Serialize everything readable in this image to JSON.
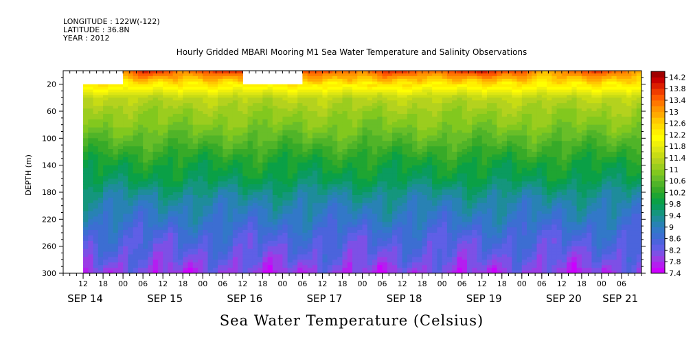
{
  "header": {
    "longitude": "LONGITUDE : 122W(-122)",
    "latitude": "LATITUDE : 36.8N",
    "year": "YEAR : 2012"
  },
  "chart_data": {
    "type": "heatmap",
    "title": "Hourly Gridded MBARI Mooring M1 Sea Water Temperature and Salinity Observations",
    "xlabel": "",
    "ylabel": "DEPTH (m)",
    "bottom_title": "Sea Water Temperature (Celsius)",
    "y_range": [
      0,
      300
    ],
    "y_inverted": true,
    "y_ticks": [
      20,
      60,
      100,
      140,
      180,
      220,
      260,
      300
    ],
    "x_range_hours": [
      0,
      174
    ],
    "x_hour_ticks": [
      "12",
      "18",
      "00",
      "06",
      "12",
      "18",
      "00",
      "06",
      "12",
      "18",
      "00",
      "06",
      "12",
      "18",
      "00",
      "06",
      "12",
      "18",
      "00",
      "06",
      "12",
      "18",
      "00",
      "06",
      "12",
      "18",
      "00",
      "06"
    ],
    "x_hour_tick_hours": [
      6,
      12,
      18,
      24,
      30,
      36,
      42,
      48,
      54,
      60,
      66,
      72,
      78,
      84,
      90,
      96,
      102,
      108,
      114,
      120,
      126,
      132,
      138,
      144,
      150,
      156,
      162,
      168
    ],
    "x_dates": [
      {
        "label": "SEP 14",
        "hour": 6
      },
      {
        "label": "SEP 15",
        "hour": 30
      },
      {
        "label": "SEP 16",
        "hour": 54
      },
      {
        "label": "SEP 17",
        "hour": 78
      },
      {
        "label": "SEP 18",
        "hour": 102
      },
      {
        "label": "SEP 19",
        "hour": 126
      },
      {
        "label": "SEP 20",
        "hour": 150
      },
      {
        "label": "SEP 21",
        "hour": 167
      }
    ],
    "colorbar": {
      "levels": [
        7.4,
        7.6,
        7.8,
        8.0,
        8.2,
        8.4,
        8.6,
        8.8,
        9.0,
        9.2,
        9.4,
        9.6,
        9.8,
        10.0,
        10.2,
        10.4,
        10.6,
        10.8,
        11.0,
        11.2,
        11.4,
        11.6,
        11.8,
        12.0,
        12.2,
        12.4,
        12.6,
        12.8,
        13.0,
        13.2,
        13.4,
        13.6,
        13.8,
        14.0,
        14.2,
        14.4
      ],
      "labels": [
        "7.4",
        "7.8",
        "8.2",
        "8.6",
        "9",
        "9.4",
        "9.8",
        "10.2",
        "10.6",
        "11",
        "11.4",
        "11.8",
        "12.2",
        "12.6",
        "13",
        "13.4",
        "13.8",
        "14.2"
      ],
      "colors": [
        "#cc00ff",
        "#b41ef0",
        "#9b3ce6",
        "#7d50e6",
        "#5f5fe6",
        "#4b64dc",
        "#3c6ed2",
        "#3278c8",
        "#2882b4",
        "#1e8c9b",
        "#14967d",
        "#0a9b5f",
        "#0aa046",
        "#1ea532",
        "#37aa28",
        "#50b428",
        "#69be28",
        "#82c81e",
        "#9bcd1e",
        "#b4d21e",
        "#c8dc14",
        "#dce614",
        "#f0f00a",
        "#ffff00",
        "#fff000",
        "#ffdc00",
        "#ffc800",
        "#ffaa00",
        "#ff9600",
        "#ff7800",
        "#ff5a00",
        "#f03c00",
        "#dc1e00",
        "#c80000",
        "#a00000"
      ],
      "units": "Celsius"
    },
    "series": [
      {
        "name": "surface_temperature_by_hour",
        "x_hours": [
          0,
          12,
          18,
          24,
          30,
          36,
          42,
          48,
          54,
          60,
          66,
          72,
          78,
          84,
          90,
          96,
          102,
          108,
          114,
          120,
          126,
          132,
          138,
          144,
          150,
          156,
          162,
          168,
          174
        ],
        "values": [
          null,
          null,
          13.2,
          14.0,
          13.8,
          13.2,
          13.6,
          13.8,
          null,
          null,
          null,
          null,
          13.6,
          13.5,
          13.2,
          13.8,
          13.9,
          13.3,
          13.4,
          13.8,
          14.0,
          13.7,
          13.6,
          12.8,
          13.2,
          13.6,
          13.8,
          13.4,
          12.8
        ]
      }
    ],
    "depth_profile_reference": {
      "depths": [
        20,
        40,
        60,
        80,
        100,
        120,
        140,
        160,
        180,
        200,
        220,
        240,
        260,
        280,
        300
      ],
      "values": [
        12.4,
        11.4,
        11.1,
        10.9,
        10.6,
        10.3,
        10.0,
        9.8,
        9.4,
        9.1,
        8.9,
        8.6,
        8.4,
        8.2,
        7.9
      ]
    },
    "data_gaps": [
      {
        "hours": [
          0,
          6
        ],
        "depth": [
          0,
          300
        ]
      },
      {
        "hours": [
          6,
          18
        ],
        "depth": [
          0,
          20
        ]
      },
      {
        "hours": [
          54,
          72
        ],
        "depth": [
          0,
          20
        ]
      }
    ]
  }
}
